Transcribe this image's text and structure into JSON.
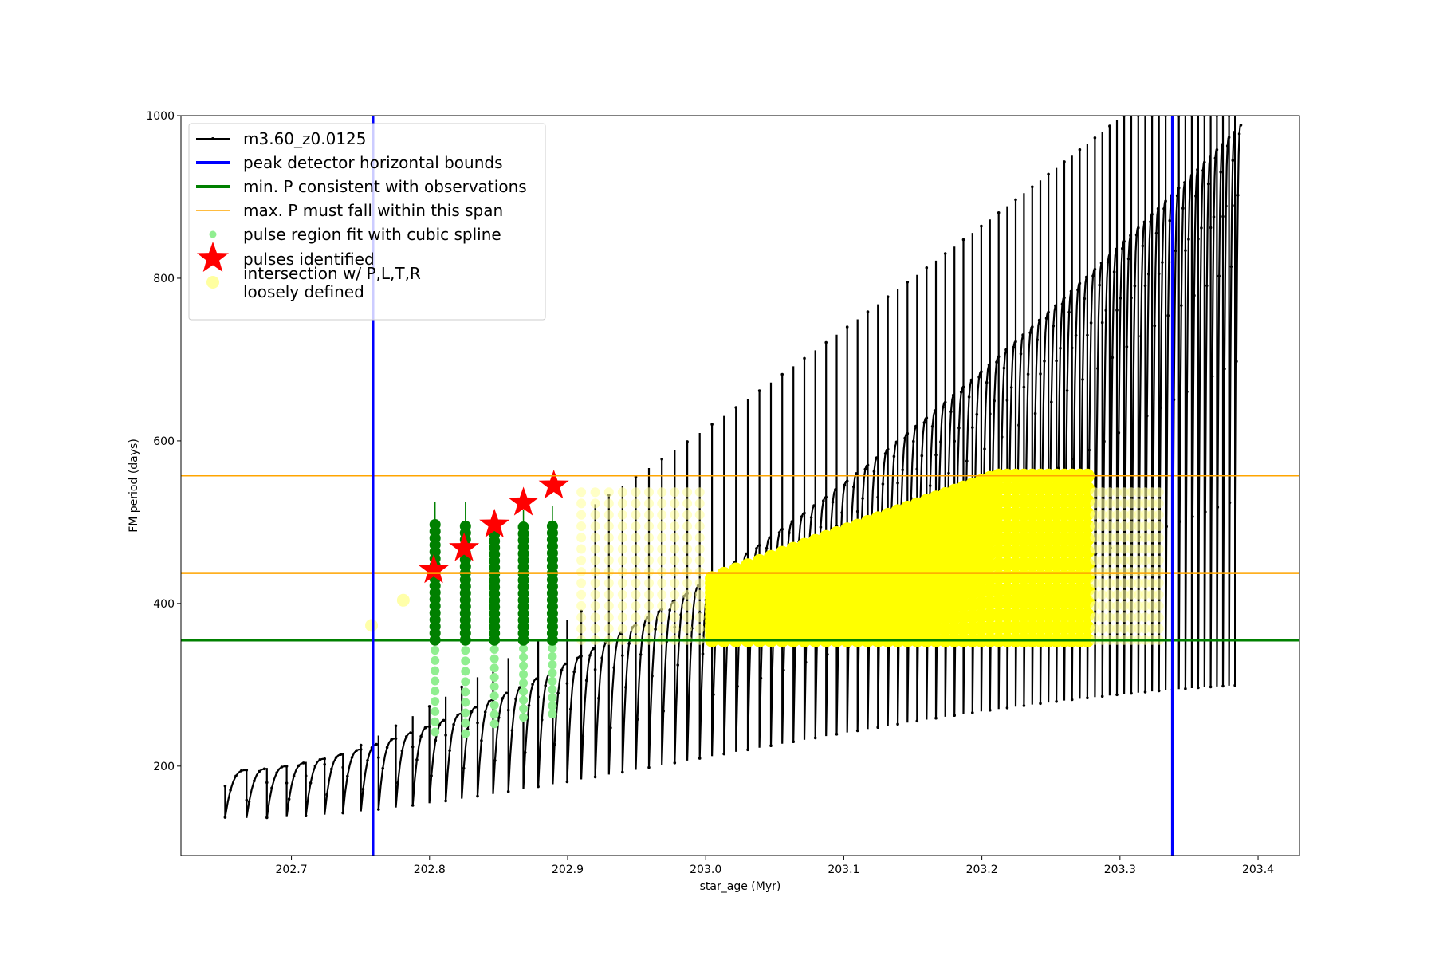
{
  "chart_data": {
    "type": "scatter",
    "xlabel": "star_age (Myr)",
    "ylabel": "FM period (days)",
    "xlim": [
      202.62,
      203.43
    ],
    "ylim": [
      90,
      1000
    ],
    "x_ticks": [
      202.7,
      202.8,
      202.9,
      203.0,
      203.1,
      203.2,
      203.3,
      203.4
    ],
    "x_tick_labels": [
      "202.7",
      "202.8",
      "202.9",
      "203.0",
      "203.1",
      "203.2",
      "203.3",
      "203.4"
    ],
    "y_ticks": [
      200,
      400,
      600,
      800,
      1000
    ],
    "y_tick_labels": [
      "200",
      "400",
      "600",
      "800",
      "1000"
    ],
    "grid": false,
    "legend_position": "top-left",
    "legend": [
      {
        "label": "m3.60_z0.0125",
        "kind": "line-marker",
        "color": "#000000"
      },
      {
        "label": "peak detector horizontal bounds",
        "kind": "line",
        "color": "#0000ff"
      },
      {
        "label": "min. P consistent with observations",
        "kind": "line",
        "color": "#008000"
      },
      {
        "label": "max. P must fall within this span",
        "kind": "thin-line",
        "color": "#ffa500"
      },
      {
        "label": "pulse region fit with cubic spline",
        "kind": "dot",
        "color": "#90ee90"
      },
      {
        "label": "pulses identified",
        "kind": "star",
        "color": "#ff0000"
      },
      {
        "label": "intersection w/ P,L,T,R\nloosely defined",
        "kind": "big-dot",
        "color": "#ffffa0"
      }
    ],
    "model_track": {
      "name": "m3.60_z0.0125",
      "color": "#000000",
      "x_start": 202.652,
      "x_end": 203.39,
      "cycle_spacing_start": 0.0155,
      "cycle_spacing_end": 0.0042,
      "baseline_start": 100,
      "baseline_end": 1000,
      "envelope_start": 195,
      "envelope_end": 1000,
      "spike_start": 150,
      "spike_end": 1000,
      "dip_depth_start": 0.6,
      "dip_depth_end": 0.3
    },
    "peak_detector_bounds": {
      "color": "#0000ff",
      "x": [
        202.759,
        203.338
      ]
    },
    "min_period_line": {
      "color": "#008000",
      "y": 355
    },
    "max_period_span": {
      "color": "#ffa500",
      "y": [
        437,
        557
      ]
    },
    "pulse_regions": {
      "color_fit": "#90ee90",
      "color_observed": "#008000",
      "regions": [
        {
          "x": 202.804,
          "fit_low": 242,
          "low": 355,
          "high": 497,
          "spike": 525
        },
        {
          "x": 202.826,
          "fit_low": 240,
          "low": 355,
          "high": 495,
          "spike": 525
        },
        {
          "x": 202.847,
          "fit_low": 252,
          "low": 355,
          "high": 493,
          "spike": 510
        },
        {
          "x": 202.868,
          "fit_low": 260,
          "low": 355,
          "high": 494,
          "spike": 515
        },
        {
          "x": 202.889,
          "fit_low": 264,
          "low": 355,
          "high": 495,
          "spike": 520
        }
      ]
    },
    "pulses_identified": {
      "color": "#ff0000",
      "points": [
        {
          "x": 202.803,
          "y": 441
        },
        {
          "x": 202.825,
          "y": 468
        },
        {
          "x": 202.847,
          "y": 497
        },
        {
          "x": 202.868,
          "y": 524
        },
        {
          "x": 202.89,
          "y": 545
        }
      ]
    },
    "intersection_region": {
      "color": "#ffff00",
      "faint_color": "#ffffa0",
      "early_points": [
        {
          "x": 202.758,
          "y": 373
        },
        {
          "x": 202.781,
          "y": 404
        }
      ],
      "band_x_start": 202.905,
      "band_x_end": 203.33,
      "ymin": 355,
      "ymax": 557
    }
  }
}
